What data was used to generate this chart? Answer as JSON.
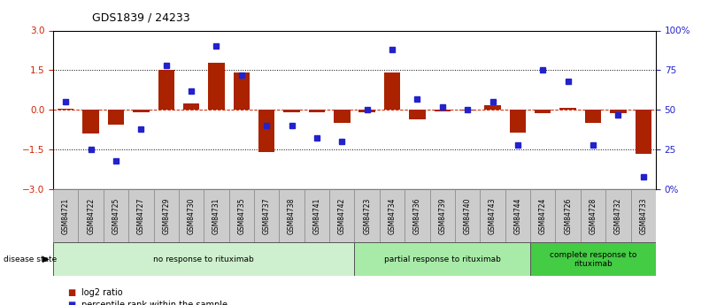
{
  "title": "GDS1839 / 24233",
  "samples": [
    "GSM84721",
    "GSM84722",
    "GSM84725",
    "GSM84727",
    "GSM84729",
    "GSM84730",
    "GSM84731",
    "GSM84735",
    "GSM84737",
    "GSM84738",
    "GSM84741",
    "GSM84742",
    "GSM84723",
    "GSM84734",
    "GSM84736",
    "GSM84739",
    "GSM84740",
    "GSM84743",
    "GSM84744",
    "GSM84724",
    "GSM84726",
    "GSM84728",
    "GSM84732",
    "GSM84733"
  ],
  "log2_ratio": [
    0.05,
    -0.9,
    -0.55,
    -0.08,
    1.5,
    0.25,
    1.78,
    1.42,
    -1.6,
    -0.1,
    -0.08,
    -0.5,
    -0.08,
    1.4,
    -0.35,
    -0.05,
    -0.02,
    0.18,
    -0.85,
    -0.12,
    0.08,
    -0.5,
    -0.12,
    -1.65
  ],
  "percentile": [
    55,
    25,
    18,
    38,
    78,
    62,
    90,
    72,
    40,
    40,
    32,
    30,
    50,
    88,
    57,
    52,
    50,
    55,
    28,
    75,
    68,
    28,
    47,
    8
  ],
  "groups": [
    {
      "label": "no response to rituximab",
      "start": 0,
      "end": 12,
      "color": "#cef0ce"
    },
    {
      "label": "partial response to rituximab",
      "start": 12,
      "end": 19,
      "color": "#a8eba8"
    },
    {
      "label": "complete response to\nrituximab",
      "start": 19,
      "end": 24,
      "color": "#44cc44"
    }
  ],
  "bar_color": "#aa2200",
  "dot_color": "#2222cc",
  "ylim_left": [
    -3,
    3
  ],
  "yticks_left": [
    -3,
    -1.5,
    0,
    1.5,
    3
  ],
  "yticks_right": [
    0,
    25,
    50,
    75,
    100
  ],
  "ylabel_left_color": "#cc2200",
  "ylabel_right_color": "#2222cc",
  "hline_color": "#cc2200",
  "dotted_color": "black",
  "bg_color": "white",
  "legend_items": [
    {
      "label": "log2 ratio",
      "color": "#aa2200"
    },
    {
      "label": "percentile rank within the sample",
      "color": "#2222cc"
    }
  ]
}
